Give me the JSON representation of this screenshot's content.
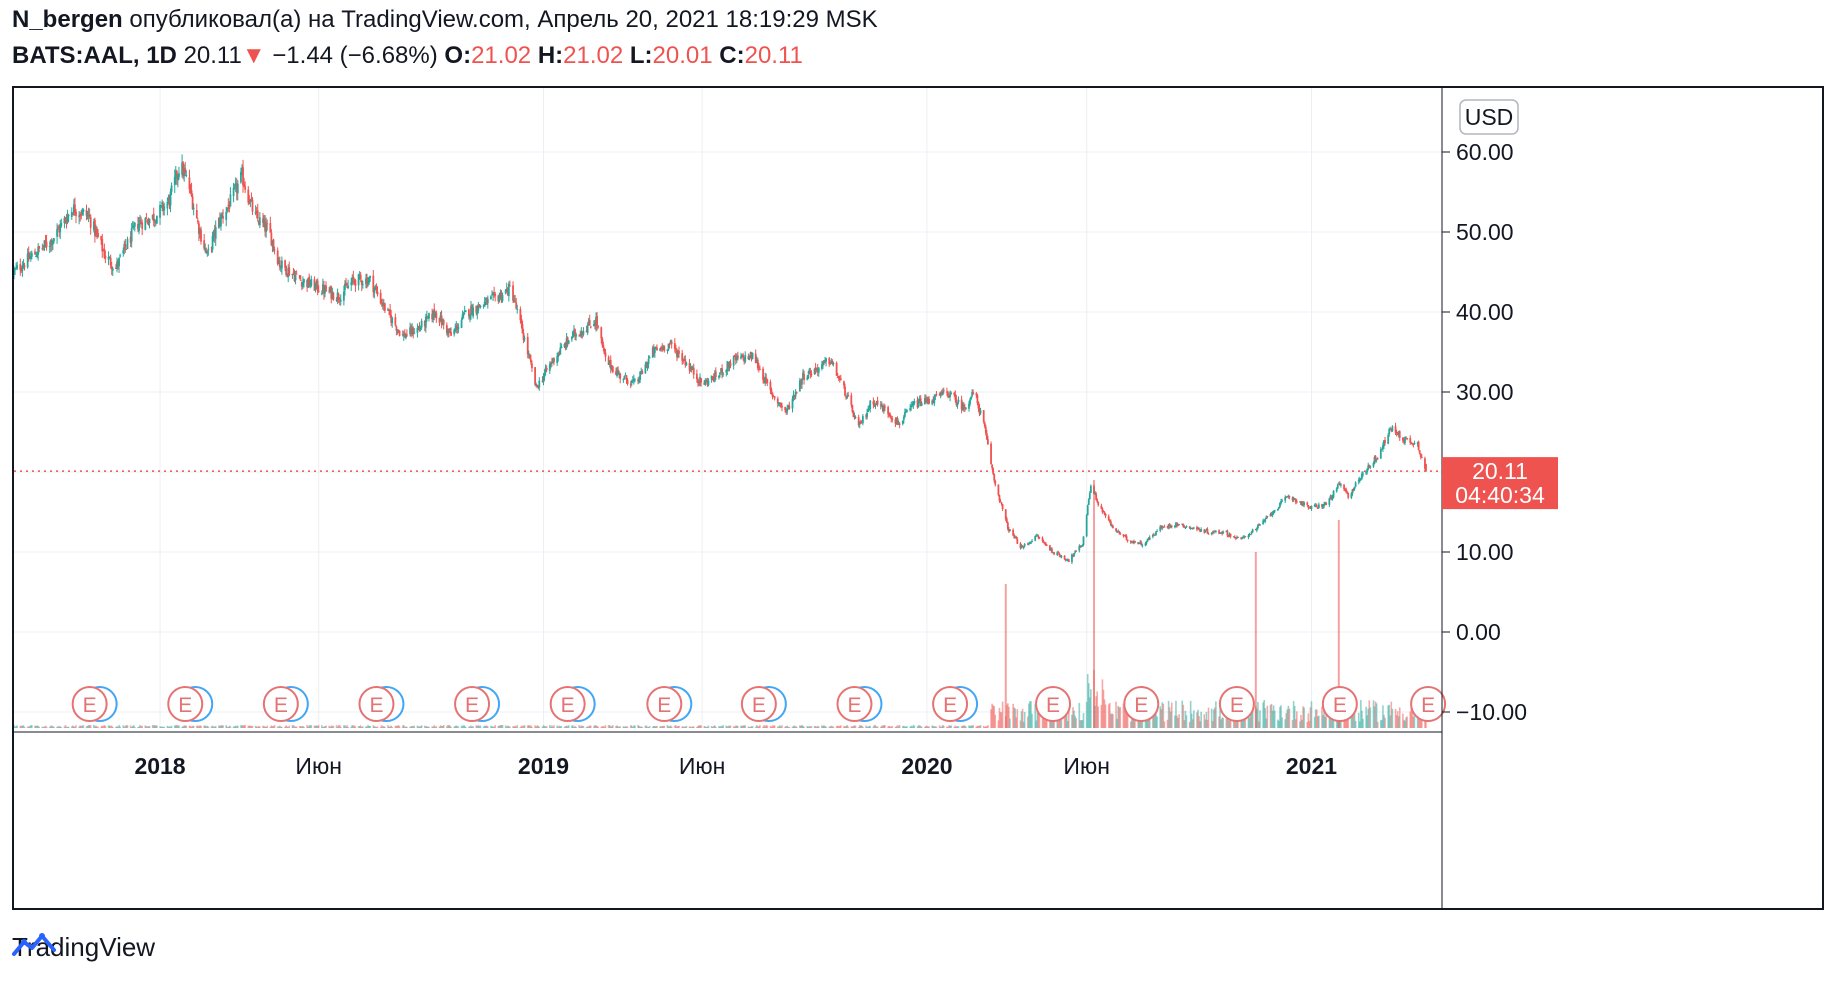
{
  "header": {
    "author": "N_bergen",
    "published_text": "опубликовал(а) на TradingView.com, Апрель 20, 2021 18:19:29 MSK",
    "symbol": "BATS:AAL, 1D",
    "last": "20.11",
    "change_arrow": "▼",
    "change": "−1.44 (−6.68%)",
    "o_label": "O:",
    "o": "21.02",
    "h_label": "H:",
    "h": "21.02",
    "l_label": "L:",
    "l": "20.01",
    "c_label": "C:",
    "c": "20.11"
  },
  "currency": "USD",
  "price_tag": {
    "price": "20.11",
    "countdown": "04:40:34"
  },
  "footer": {
    "brand": "TradingView"
  },
  "colors": {
    "up": "#26a69a",
    "down": "#ef5350",
    "grid": "#eceff3",
    "earnings_red": "#e57373",
    "earnings_blue": "#42a5f5"
  },
  "chart_data": {
    "type": "candlestick",
    "symbol": "BATS:AAL",
    "interval": "1D",
    "currency": "USD",
    "ylim": [
      -12,
      68
    ],
    "y_ticks": [
      60,
      50,
      40,
      30,
      20,
      10,
      0,
      -10
    ],
    "y_tick_labels": [
      "60.00",
      "50.00",
      "40.00",
      "30.00",
      "20.00",
      "10.00",
      "0.00",
      "−10.00"
    ],
    "x_range": [
      "2017-08-15",
      "2021-04-20"
    ],
    "x_ticks": [
      {
        "date": "2018-01-01",
        "label": "2018",
        "bold": true
      },
      {
        "date": "2018-06-01",
        "label": "Июн",
        "bold": false
      },
      {
        "date": "2019-01-01",
        "label": "2019",
        "bold": true
      },
      {
        "date": "2019-06-01",
        "label": "Июн",
        "bold": false
      },
      {
        "date": "2020-01-01",
        "label": "2020",
        "bold": true
      },
      {
        "date": "2020-06-01",
        "label": "Июн",
        "bold": false
      },
      {
        "date": "2021-01-01",
        "label": "2021",
        "bold": true
      }
    ],
    "close_path": [
      [
        "2017-08-15",
        45
      ],
      [
        "2017-09-01",
        47
      ],
      [
        "2017-09-20",
        49
      ],
      [
        "2017-10-10",
        53
      ],
      [
        "2017-10-25",
        52
      ],
      [
        "2017-11-10",
        47
      ],
      [
        "2017-11-20",
        45.5
      ],
      [
        "2017-12-10",
        51
      ],
      [
        "2017-12-28",
        52
      ],
      [
        "2018-01-10",
        54
      ],
      [
        "2018-01-20",
        58.5
      ],
      [
        "2018-01-28",
        56
      ],
      [
        "2018-02-08",
        50
      ],
      [
        "2018-02-15",
        47
      ],
      [
        "2018-02-25",
        51
      ],
      [
        "2018-03-10",
        54
      ],
      [
        "2018-03-20",
        57
      ],
      [
        "2018-04-01",
        52
      ],
      [
        "2018-04-15",
        50
      ],
      [
        "2018-04-25",
        46
      ],
      [
        "2018-05-15",
        44
      ],
      [
        "2018-06-01",
        43
      ],
      [
        "2018-06-20",
        42
      ],
      [
        "2018-07-05",
        44
      ],
      [
        "2018-07-20",
        44
      ],
      [
        "2018-08-05",
        40
      ],
      [
        "2018-08-20",
        37
      ],
      [
        "2018-09-05",
        38
      ],
      [
        "2018-09-20",
        40
      ],
      [
        "2018-10-05",
        37
      ],
      [
        "2018-10-20",
        40
      ],
      [
        "2018-11-05",
        41
      ],
      [
        "2018-11-20",
        42
      ],
      [
        "2018-12-01",
        43
      ],
      [
        "2018-12-15",
        36
      ],
      [
        "2018-12-25",
        30.5
      ],
      [
        "2019-01-10",
        34
      ],
      [
        "2019-01-28",
        37
      ],
      [
        "2019-02-10",
        38
      ],
      [
        "2019-02-20",
        39
      ],
      [
        "2019-03-01",
        34
      ],
      [
        "2019-03-15",
        32
      ],
      [
        "2019-03-30",
        31
      ],
      [
        "2019-04-15",
        35
      ],
      [
        "2019-05-01",
        36
      ],
      [
        "2019-05-15",
        34
      ],
      [
        "2019-06-01",
        31
      ],
      [
        "2019-06-15",
        32
      ],
      [
        "2019-07-01",
        34
      ],
      [
        "2019-07-20",
        34.5
      ],
      [
        "2019-08-05",
        30
      ],
      [
        "2019-08-20",
        27.5
      ],
      [
        "2019-09-05",
        32
      ],
      [
        "2019-09-20",
        33
      ],
      [
        "2019-10-01",
        34
      ],
      [
        "2019-10-15",
        30
      ],
      [
        "2019-10-28",
        25.5
      ],
      [
        "2019-11-10",
        29
      ],
      [
        "2019-11-25",
        27.5
      ],
      [
        "2019-12-05",
        26
      ],
      [
        "2019-12-20",
        28.5
      ],
      [
        "2020-01-05",
        29
      ],
      [
        "2020-01-20",
        30
      ],
      [
        "2020-02-05",
        28
      ],
      [
        "2020-02-15",
        30
      ],
      [
        "2020-02-24",
        26
      ],
      [
        "2020-03-05",
        19
      ],
      [
        "2020-03-18",
        13
      ],
      [
        "2020-03-31",
        10.5
      ],
      [
        "2020-04-15",
        12
      ],
      [
        "2020-04-30",
        10
      ],
      [
        "2020-05-15",
        9
      ],
      [
        "2020-05-28",
        11
      ],
      [
        "2020-06-05",
        18.5
      ],
      [
        "2020-06-12",
        16
      ],
      [
        "2020-06-26",
        13
      ],
      [
        "2020-07-10",
        11.5
      ],
      [
        "2020-07-25",
        11
      ],
      [
        "2020-08-10",
        13
      ],
      [
        "2020-08-25",
        13.5
      ],
      [
        "2020-09-10",
        13
      ],
      [
        "2020-09-25",
        12.5
      ],
      [
        "2020-10-10",
        12.5
      ],
      [
        "2020-10-25",
        11.5
      ],
      [
        "2020-11-10",
        13
      ],
      [
        "2020-11-25",
        15
      ],
      [
        "2020-12-10",
        17
      ],
      [
        "2020-12-31",
        15.5
      ],
      [
        "2021-01-15",
        16
      ],
      [
        "2021-01-28",
        18.5
      ],
      [
        "2021-02-05",
        17
      ],
      [
        "2021-02-20",
        20
      ],
      [
        "2021-03-05",
        22
      ],
      [
        "2021-03-18",
        25.5
      ],
      [
        "2021-03-31",
        24
      ],
      [
        "2021-04-12",
        23.5
      ],
      [
        "2021-04-20",
        20.11
      ]
    ],
    "last_price": 20.11,
    "volume_spikes": [
      {
        "date": "2020-06-08",
        "height": 19
      },
      {
        "date": "2020-03-16",
        "height": 6
      },
      {
        "date": "2020-11-09",
        "height": 10
      },
      {
        "date": "2021-01-27",
        "height": 14
      }
    ],
    "earnings": [
      {
        "date": "2017-10-26",
        "label": "E",
        "reported": true
      },
      {
        "date": "2018-01-25",
        "label": "E",
        "reported": true
      },
      {
        "date": "2018-04-26",
        "label": "E",
        "reported": true
      },
      {
        "date": "2018-07-26",
        "label": "E",
        "reported": true
      },
      {
        "date": "2018-10-25",
        "label": "E",
        "reported": true
      },
      {
        "date": "2019-01-24",
        "label": "E",
        "reported": true
      },
      {
        "date": "2019-04-26",
        "label": "E",
        "reported": true
      },
      {
        "date": "2019-07-25",
        "label": "E",
        "reported": true
      },
      {
        "date": "2019-10-24",
        "label": "E",
        "reported": true
      },
      {
        "date": "2020-01-23",
        "label": "E",
        "reported": true
      },
      {
        "date": "2020-04-30",
        "label": "E",
        "reported": false
      },
      {
        "date": "2020-07-23",
        "label": "E",
        "reported": false
      },
      {
        "date": "2020-10-22",
        "label": "E",
        "reported": false
      },
      {
        "date": "2021-01-28",
        "label": "E",
        "reported": false
      },
      {
        "date": "2021-04-22",
        "label": "E",
        "reported": false
      }
    ]
  }
}
